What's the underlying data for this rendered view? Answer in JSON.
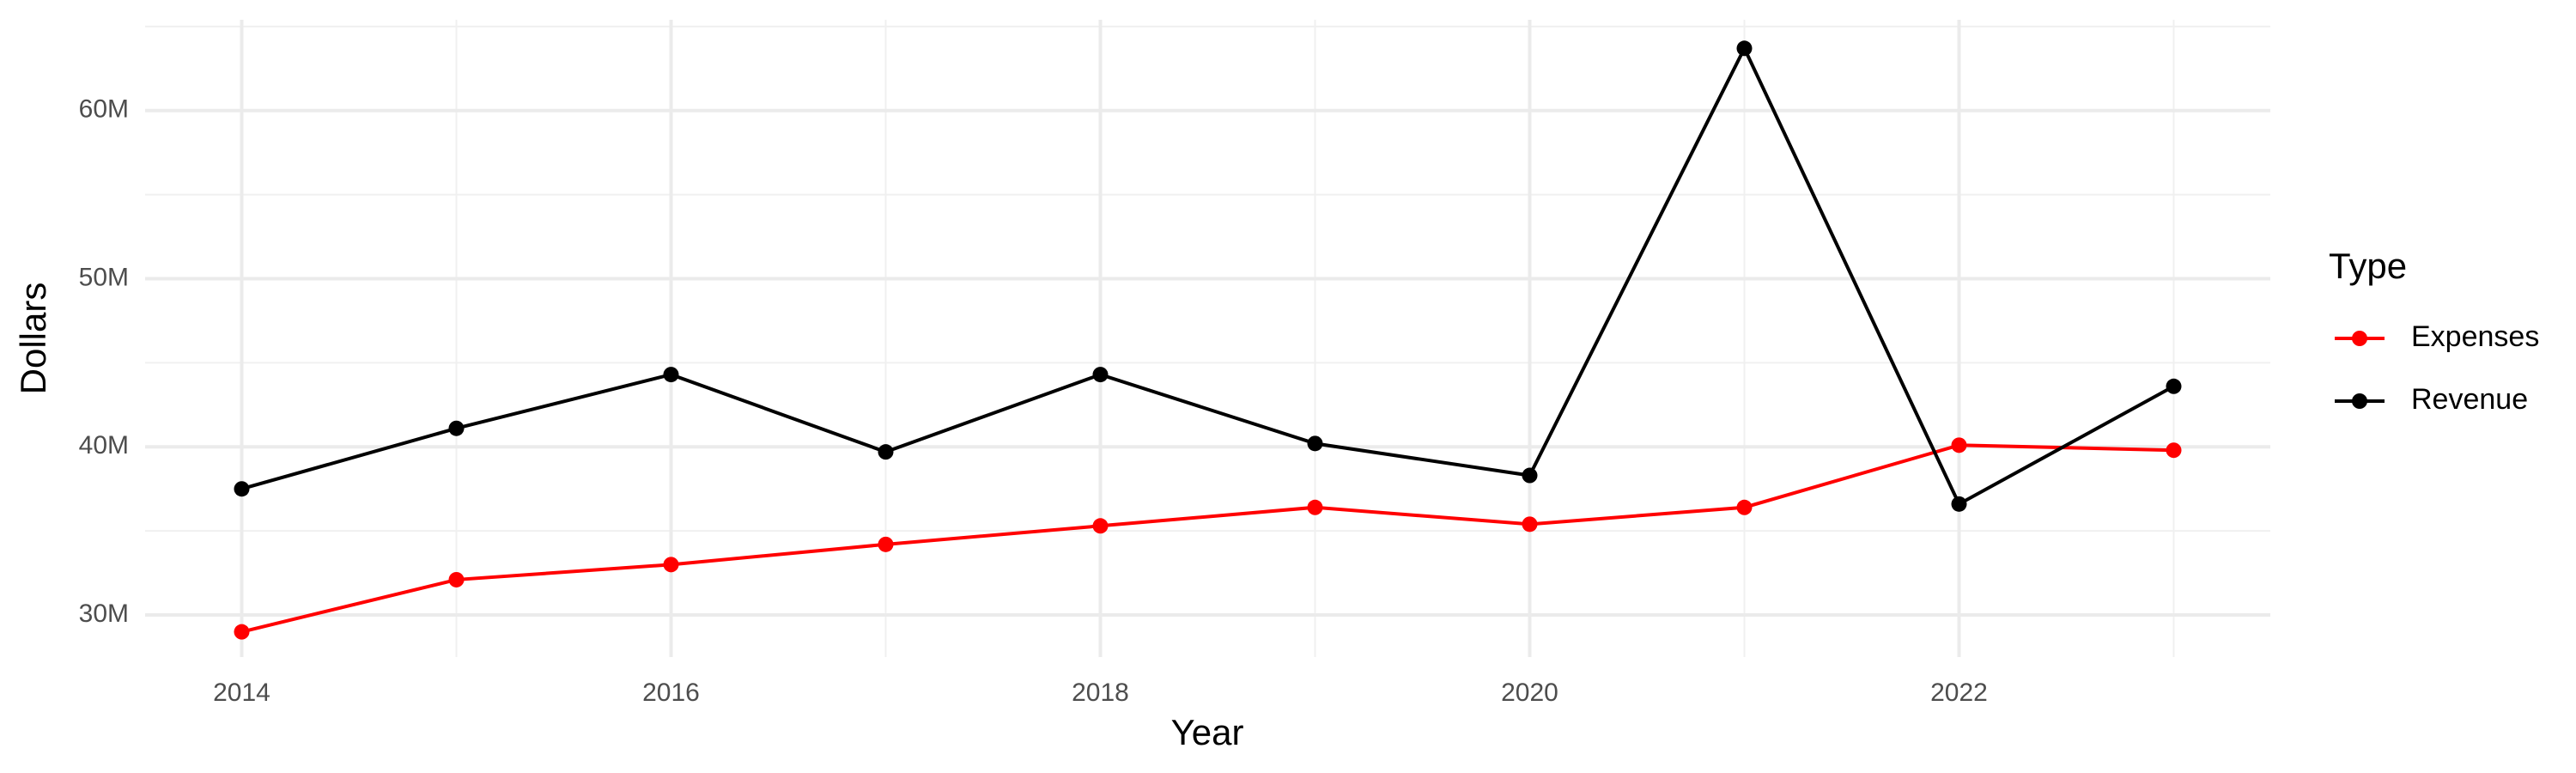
{
  "chart_data": {
    "type": "line",
    "x_label": "Year",
    "y_label": "Dollars",
    "legend_title": "Type",
    "x": [
      2014,
      2015,
      2016,
      2017,
      2018,
      2019,
      2020,
      2021,
      2022,
      2023
    ],
    "series": [
      {
        "name": "Expenses",
        "color": "#ff0000",
        "values": [
          29000000,
          32100000,
          33000000,
          34200000,
          35300000,
          36400000,
          35400000,
          36400000,
          40100000,
          39800000
        ]
      },
      {
        "name": "Revenue",
        "color": "#000000",
        "values": [
          37500000,
          41100000,
          44300000,
          39700000,
          44300000,
          40200000,
          38300000,
          63700000,
          36600000,
          43600000
        ]
      }
    ],
    "xlim": [
      2013.55,
      2023.45
    ],
    "xticks": [
      2014,
      2016,
      2018,
      2020,
      2022
    ],
    "ylim": [
      27500000,
      65400000
    ],
    "yticks": [
      {
        "value": 30000000,
        "label": "30M"
      },
      {
        "value": 40000000,
        "label": "40M"
      },
      {
        "value": 50000000,
        "label": "50M"
      },
      {
        "value": 60000000,
        "label": "60M"
      }
    ],
    "grid": true,
    "legend": "right"
  }
}
